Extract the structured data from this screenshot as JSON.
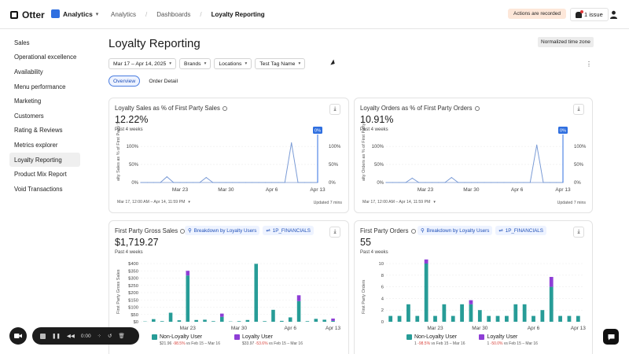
{
  "brand": {
    "logo_text": "Otter"
  },
  "app_switch": {
    "label": "Analytics"
  },
  "breadcrumbs": [
    "Analytics",
    "Dashboards",
    "Loyalty Reporting"
  ],
  "header": {
    "recorded_badge": "Actions are recorded",
    "issue_label": "1 issue"
  },
  "sidebar": {
    "items": [
      {
        "label": "Sales"
      },
      {
        "label": "Operational excellence"
      },
      {
        "label": "Availability"
      },
      {
        "label": "Menu performance"
      },
      {
        "label": "Marketing"
      },
      {
        "label": "Customers"
      },
      {
        "label": "Rating & Reviews"
      },
      {
        "label": "Metrics explorer"
      },
      {
        "label": "Loyalty Reporting",
        "active": true
      },
      {
        "label": "Product Mix Report"
      },
      {
        "label": "Void Transactions"
      }
    ]
  },
  "page": {
    "title": "Loyalty Reporting",
    "timezone_badge": "Normalized time zone"
  },
  "filters": [
    "Mar 17 – Apr 14, 2025",
    "Brands",
    "Locations",
    "Test Tag Name"
  ],
  "tabs": [
    "Overview",
    "Order Detail"
  ],
  "colors": {
    "teal": "#279c97",
    "purple": "#8e3ed6",
    "line": "#7a9bd6",
    "accent": "#2f6fe0"
  },
  "cards": {
    "loyalty_sales": {
      "title": "Loyalty Sales as % of First Party Sales",
      "value": "12.22%",
      "subtitle": "Past 4 weeks",
      "range": "Mar 17, 12:00 AM – Apr 14, 11:59 PM",
      "updated": "Updated 7 mins",
      "ylabel": "alty Sales as % of First Party S",
      "marker": "0%"
    },
    "loyalty_orders": {
      "title": "Loyalty Orders as % of First Party Orders",
      "value": "10.91%",
      "subtitle": "Past 4 weeks",
      "range": "Mar 17, 12:00 AM – Apr 14, 11:59 PM",
      "updated": "Updated 7 mins",
      "ylabel": "alty Orders as % of First Party O",
      "marker": "0%"
    },
    "gross_sales": {
      "title": "First Party Gross Sales",
      "chip1": "Breakdown by Loyalty Users",
      "chip2": "1P_FINANCIALS",
      "value": "$1,719.27",
      "subtitle": "Past 4 weeks",
      "ylabel": "First Party Gross Sales",
      "legend": [
        {
          "label": "Non-Loyalty User",
          "value": "$21.96",
          "change": "-98.5%",
          "period": "vs Feb 15 – Mar 16"
        },
        {
          "label": "Loyalty User",
          "value": "$33.97",
          "change": "-53.6%",
          "period": "vs Feb 15 – Mar 16"
        }
      ]
    },
    "first_orders": {
      "title": "First Party Orders",
      "chip1": "Breakdown by Loyalty Users",
      "chip2": "1P_FINANCIALS",
      "value": "55",
      "subtitle": "Past 4 weeks",
      "ylabel": "First Party Orders",
      "legend": [
        {
          "label": "Non-Loyalty User",
          "value": "1",
          "change": "-98.5%",
          "period": "vs Feb 15 – Mar 16"
        },
        {
          "label": "Loyalty User",
          "value": "1",
          "change": "-50.0%",
          "period": "vs Feb 15 – Mar 16"
        }
      ]
    }
  },
  "recorder": {
    "time": "0:00"
  },
  "chart_data": [
    {
      "type": "line",
      "title": "Loyalty Sales as % of First Party Sales",
      "x_ticks": [
        "Mar 23",
        "Mar 30",
        "Apr 6",
        "Apr 13"
      ],
      "y_ticks": [
        "0%",
        "50%",
        "100%"
      ],
      "ylim": [
        0,
        120
      ],
      "x": [
        17,
        18,
        19,
        20,
        21,
        22,
        23,
        24,
        25,
        26,
        27,
        28,
        29,
        30,
        31,
        32,
        33,
        34,
        35,
        36,
        37,
        38,
        39,
        40,
        41,
        42,
        43,
        44
      ],
      "series": [
        {
          "values": [
            0,
            0,
            0,
            0,
            16,
            0,
            0,
            0,
            0,
            0,
            14,
            0,
            0,
            0,
            0,
            0,
            0,
            0,
            0,
            0,
            0,
            0,
            0,
            110,
            0,
            0,
            0,
            0
          ]
        }
      ]
    },
    {
      "type": "line",
      "title": "Loyalty Orders as % of First Party Orders",
      "x_ticks": [
        "Mar 23",
        "Mar 30",
        "Apr 6",
        "Apr 13"
      ],
      "y_ticks": [
        "0%",
        "50%",
        "100%"
      ],
      "ylim": [
        0,
        120
      ],
      "x": [
        17,
        18,
        19,
        20,
        21,
        22,
        23,
        24,
        25,
        26,
        27,
        28,
        29,
        30,
        31,
        32,
        33,
        34,
        35,
        36,
        37,
        38,
        39,
        40,
        41,
        42,
        43,
        44
      ],
      "series": [
        {
          "values": [
            0,
            0,
            0,
            0,
            12,
            0,
            0,
            0,
            0,
            0,
            14,
            0,
            0,
            0,
            0,
            0,
            0,
            0,
            0,
            0,
            0,
            0,
            0,
            104,
            0,
            0,
            0,
            0
          ]
        }
      ]
    },
    {
      "type": "bar",
      "title": "First Party Gross Sales",
      "x_ticks": [
        "Mar 23",
        "Mar 30",
        "Apr 6",
        "Apr 13"
      ],
      "y_ticks": [
        "$0",
        "$50",
        "$100",
        "$150",
        "$200",
        "$250",
        "$300",
        "$350",
        "$400"
      ],
      "ylim": [
        0,
        400
      ],
      "series": [
        {
          "name": "Non-Loyalty User",
          "values": [
            2,
            18,
            4,
            62,
            10,
            318,
            12,
            14,
            4,
            34,
            2,
            4,
            12,
            398,
            4,
            82,
            6,
            30,
            142,
            4,
            20,
            14,
            6
          ]
        },
        {
          "name": "Loyalty User",
          "values": [
            0,
            0,
            0,
            0,
            0,
            32,
            0,
            0,
            0,
            22,
            0,
            0,
            0,
            0,
            0,
            0,
            0,
            0,
            40,
            0,
            0,
            0,
            16
          ]
        }
      ]
    },
    {
      "type": "bar",
      "title": "First Party Orders",
      "x_ticks": [
        "Mar 23",
        "Mar 30",
        "Apr 6",
        "Apr 13"
      ],
      "y_ticks": [
        "0",
        "2",
        "4",
        "6",
        "8",
        "10"
      ],
      "ylim": [
        0,
        10
      ],
      "series": [
        {
          "name": "Non-Loyalty User",
          "values": [
            1,
            1,
            3,
            1,
            10,
            1,
            3,
            1,
            3,
            3,
            2,
            1,
            1,
            1,
            3,
            3,
            1,
            2,
            6,
            1,
            1,
            1
          ]
        },
        {
          "name": "Loyalty User",
          "values": [
            0,
            0,
            0,
            0,
            0.7,
            0,
            0,
            0,
            0,
            0.7,
            0,
            0,
            0,
            0,
            0,
            0,
            0,
            0,
            1.7,
            0,
            0,
            0
          ]
        }
      ]
    }
  ]
}
